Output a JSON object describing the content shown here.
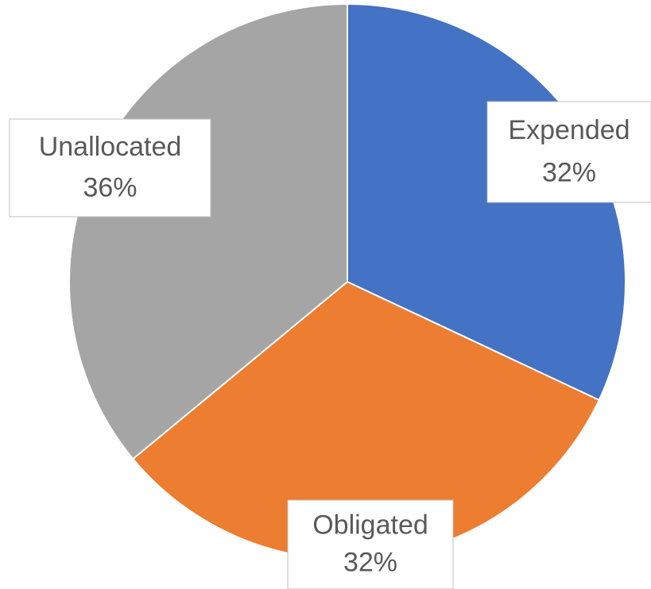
{
  "chart_data": {
    "type": "pie",
    "categories": [
      "Expended",
      "Obligated",
      "Unallocated"
    ],
    "values": [
      32,
      32,
      36
    ],
    "value_labels": [
      "32%",
      "32%",
      "36%"
    ],
    "colors": [
      "#4472c4",
      "#ed7d31",
      "#a5a5a5"
    ]
  }
}
